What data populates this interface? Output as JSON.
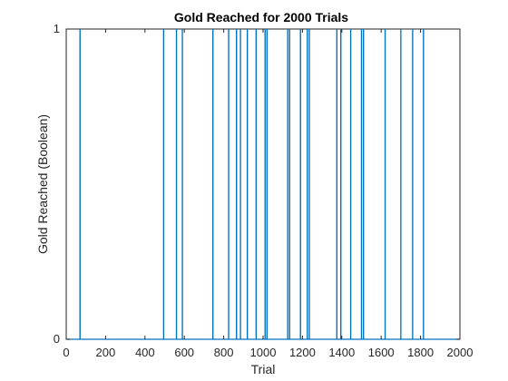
{
  "colors": {
    "series": "#0072BD",
    "axis": "#262626",
    "background": "#ffffff"
  },
  "chart_data": {
    "type": "line",
    "title": "Gold Reached for 2000 Trials",
    "xlabel": "Trial",
    "ylabel": "Gold Reached (Boolean)",
    "xlim": [
      0,
      2000
    ],
    "ylim": [
      0,
      1
    ],
    "grid": false,
    "xticks": [
      0,
      200,
      400,
      600,
      800,
      1000,
      1200,
      1400,
      1600,
      1800,
      2000
    ],
    "yticks": [
      0,
      1
    ],
    "x_tick_labels": [
      "0",
      "200",
      "400",
      "600",
      "800",
      "1000",
      "1200",
      "1400",
      "1600",
      "1800",
      "2000"
    ],
    "y_tick_labels": [
      "0",
      "1"
    ],
    "series": [
      {
        "success_trials": [
          70,
          495,
          560,
          590,
          745,
          825,
          865,
          885,
          920,
          965,
          1010,
          1020,
          1125,
          1135,
          1190,
          1225,
          1235,
          1375,
          1395,
          1445,
          1500,
          1510,
          1620,
          1700,
          1760,
          1815
        ]
      }
    ]
  }
}
